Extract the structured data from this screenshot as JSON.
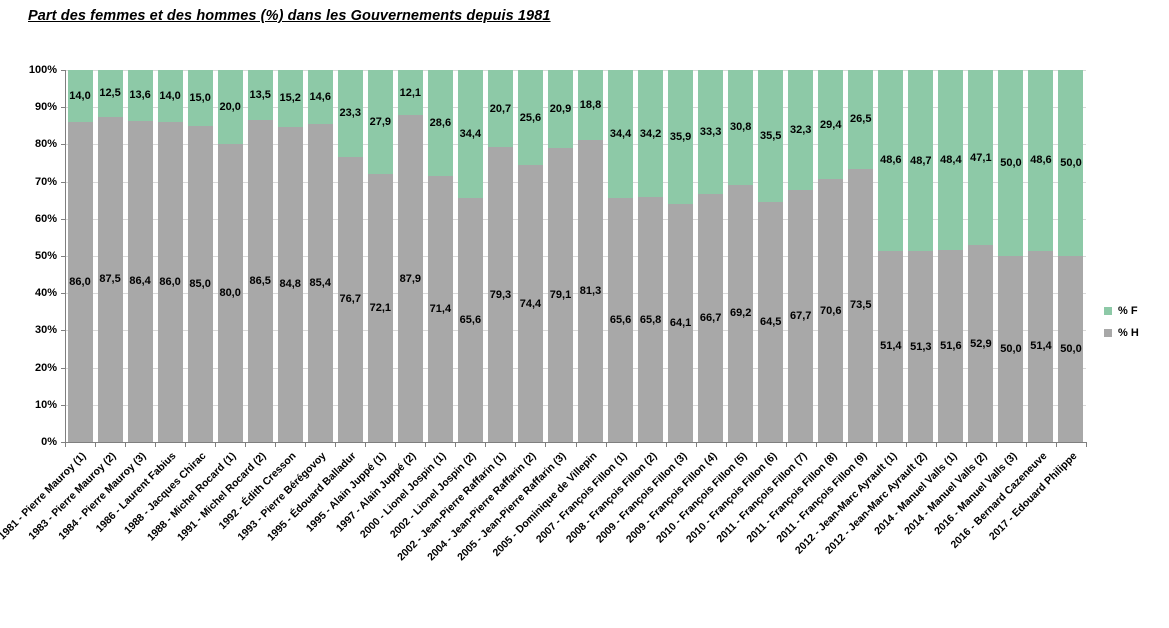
{
  "title": "Part des femmes et des hommes (%) dans les Gouvernements depuis 1981",
  "legend": [
    {
      "label": "% F",
      "color": "#8DC9A7"
    },
    {
      "label": "% H",
      "color": "#A8A8A8"
    }
  ],
  "colors": {
    "femmes": "#8DC9A7",
    "hommes": "#A8A8A8",
    "gridline": "#D9D9D9",
    "axis": "#7F7F7F",
    "text": "#000000"
  },
  "chart_data": {
    "type": "bar",
    "stacked": true,
    "title": "Part des femmes et des hommes (%) dans les Gouvernements depuis 1981",
    "categories": [
      "1981 - Pierre Mauroy (1)",
      "1983 - Pierre Mauroy (2)",
      "1984 - Pierre Mauroy (3)",
      "1986 - Laurent Fabius",
      "1988 - Jacques Chirac",
      "1988 - Michel Rocard (1)",
      "1991 - Michel Rocard (2)",
      "1992 - Édith Cresson",
      "1993 - Pierre Bérégovoy",
      "1995 - Édouard Balladur",
      "1995 - Alain Juppé (1)",
      "1997 - Alain Juppé (2)",
      "2000 - Lionel Jospin (1)",
      "2002 - Lionel Jospin (2)",
      "2002 - Jean-Pierre Raffarin (1)",
      "2004 - Jean-Pierre Raffarin (2)",
      "2005 - Jean-Pierre Raffarin (3)",
      "2005 - Dominique de Villepin",
      "2007 - François Fillon (1)",
      "2008 - François Fillon (2)",
      "2009 - François Fillon (3)",
      "2009 - François Fillon (4)",
      "2010 - François Fillon (5)",
      "2010 - François Fillon (6)",
      "2011 - François Fillon (7)",
      "2011 - François Fillon (8)",
      "2011 - François Fillon (9)",
      "2012 - Jean-Marc Ayrault (1)",
      "2012 - Jean-Marc Ayrault (2)",
      "2014 - Manuel Valls (1)",
      "2014 - Manuel Valls (2)",
      "2016 - Manuel Valls (3)",
      "2016 - Bernard Cazeneuve",
      "2017 - Edouard Philippe"
    ],
    "series": [
      {
        "name": "% F",
        "color": "#8DC9A7",
        "values": [
          14.0,
          12.5,
          13.6,
          14.0,
          15.0,
          20.0,
          13.5,
          15.2,
          14.6,
          23.3,
          27.9,
          12.1,
          28.6,
          34.4,
          20.7,
          25.6,
          20.9,
          18.8,
          34.4,
          34.2,
          35.9,
          33.3,
          30.8,
          35.5,
          32.3,
          29.4,
          26.5,
          48.6,
          48.7,
          48.4,
          47.1,
          50.0,
          48.6,
          50.0
        ]
      },
      {
        "name": "% H",
        "color": "#A8A8A8",
        "values": [
          86.0,
          87.5,
          86.4,
          86.0,
          85.0,
          80.0,
          86.5,
          84.8,
          85.4,
          76.7,
          72.1,
          87.9,
          71.4,
          65.6,
          79.3,
          74.4,
          79.1,
          81.3,
          65.6,
          65.8,
          64.1,
          66.7,
          69.2,
          64.5,
          67.7,
          70.6,
          73.5,
          51.4,
          51.3,
          51.6,
          52.9,
          50.0,
          51.4,
          50.0
        ]
      }
    ],
    "xlabel": "",
    "ylabel": "",
    "ylim": [
      0,
      100
    ],
    "yticks": [
      "0%",
      "10%",
      "20%",
      "30%",
      "40%",
      "50%",
      "60%",
      "70%",
      "80%",
      "90%",
      "100%"
    ],
    "grid": true,
    "legend_position": "right",
    "decimal_separator": ",",
    "data_labels": "centered-in-segment"
  }
}
